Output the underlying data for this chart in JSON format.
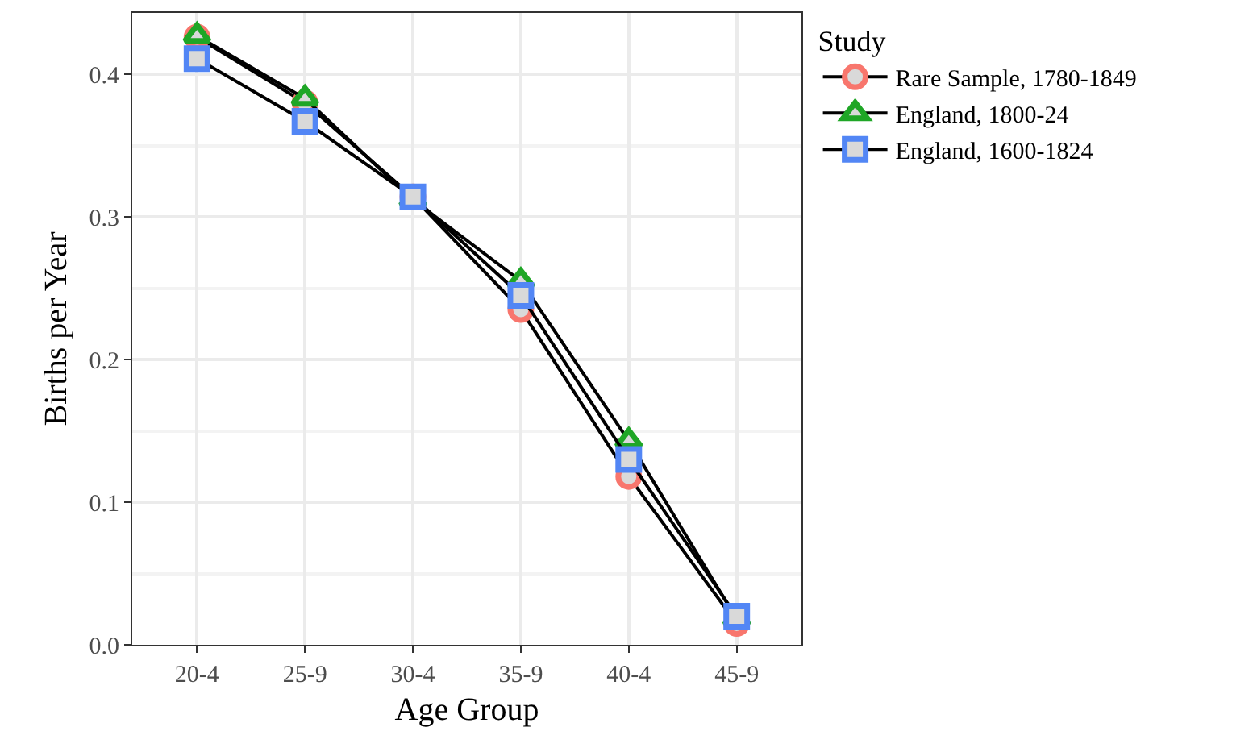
{
  "chart_data": {
    "type": "line",
    "xlabel": "Age Group",
    "ylabel": "Births per Year",
    "legend_title": "Study",
    "categories": [
      "20-4",
      "25-9",
      "30-4",
      "35-9",
      "40-4",
      "45-9"
    ],
    "series": [
      {
        "name": "Rare Sample, 1780-1849",
        "color": "#f8766d",
        "marker": "circle",
        "values": [
          0.426,
          0.38,
          0.314,
          0.235,
          0.118,
          0.015
        ]
      },
      {
        "name": "England, 1800-24",
        "color": "#1fa626",
        "marker": "triangle",
        "values": [
          0.427,
          0.383,
          0.312,
          0.255,
          0.143,
          0.018
        ]
      },
      {
        "name": "England, 1600-1824",
        "color": "#5286f5",
        "marker": "square",
        "values": [
          0.411,
          0.367,
          0.314,
          0.245,
          0.13,
          0.02
        ]
      }
    ],
    "ylim": [
      0,
      0.443
    ],
    "yticks": [
      {
        "value": 0,
        "label": "0.0"
      },
      {
        "value": 0.1,
        "label": "0.1"
      },
      {
        "value": 0.2,
        "label": "0.2"
      },
      {
        "value": 0.3,
        "label": "0.3"
      },
      {
        "value": 0.4,
        "label": "0.4"
      }
    ],
    "grid": true,
    "legend": "right",
    "line_style": "solid"
  }
}
